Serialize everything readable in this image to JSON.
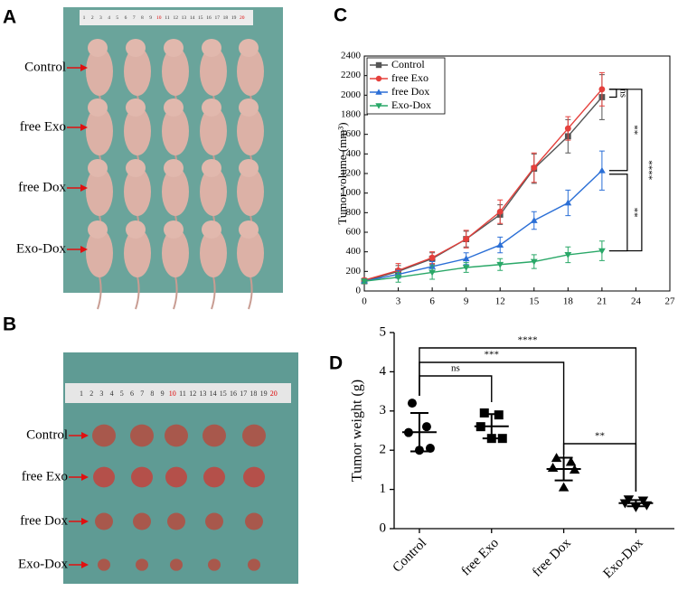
{
  "panels": [
    {
      "letter": "A",
      "ruler": [
        1,
        2,
        3,
        4,
        5,
        6,
        7,
        8,
        9,
        10,
        11,
        12,
        13,
        14,
        15,
        16,
        17,
        18,
        19,
        20
      ],
      "labels": [
        "Control",
        "free Exo",
        "free Dox",
        "Exo-Dox"
      ]
    },
    {
      "letter": "B",
      "ruler": [
        1,
        2,
        3,
        4,
        5,
        6,
        7,
        8,
        9,
        10,
        11,
        12,
        13,
        14,
        15,
        16,
        17,
        18,
        19,
        20
      ],
      "labels": [
        "Control",
        "free Exo",
        "free Dox",
        "Exo-Dox"
      ]
    }
  ],
  "chart_data": [
    {
      "type": "line",
      "letter": "C",
      "y_label": "Tumor volume (mm³)",
      "x": [
        0,
        3,
        6,
        9,
        12,
        15,
        18,
        21
      ],
      "xlim": [
        0,
        27
      ],
      "xticks": [
        0,
        3,
        6,
        9,
        12,
        15,
        18,
        21,
        24,
        27
      ],
      "ylim": [
        0,
        2400
      ],
      "yticks": [
        0,
        200,
        400,
        600,
        800,
        1000,
        1200,
        1400,
        1600,
        1800,
        2000,
        2200,
        2400
      ],
      "legend": "top-left",
      "series": [
        {
          "name": "Control",
          "color": "#555555",
          "marker": "square",
          "values": [
            100,
            200,
            330,
            530,
            780,
            1250,
            1580,
            1980
          ],
          "errors": [
            20,
            60,
            60,
            80,
            100,
            150,
            170,
            230
          ]
        },
        {
          "name": "free Exo",
          "color": "#e5403c",
          "marker": "circle",
          "values": [
            110,
            210,
            340,
            530,
            810,
            1260,
            1660,
            2060
          ],
          "errors": [
            20,
            70,
            60,
            90,
            120,
            150,
            120,
            170
          ]
        },
        {
          "name": "free Dox",
          "color": "#2b6fd6",
          "marker": "triangle",
          "values": [
            100,
            170,
            250,
            330,
            470,
            720,
            900,
            1230
          ],
          "errors": [
            20,
            40,
            50,
            60,
            80,
            90,
            130,
            200
          ]
        },
        {
          "name": "Exo-Dox",
          "color": "#2aa868",
          "marker": "triangle-down",
          "values": [
            100,
            140,
            190,
            240,
            270,
            300,
            370,
            410
          ],
          "errors": [
            20,
            50,
            70,
            50,
            60,
            70,
            80,
            100
          ]
        }
      ],
      "annotations": [
        "ns",
        "**",
        "****",
        "**"
      ]
    },
    {
      "type": "dot",
      "letter": "D",
      "y_label": "Tumor weight (g)",
      "categories": [
        "Control",
        "free Exo",
        "free Dox",
        "Exo-Dox"
      ],
      "markers": [
        "circle",
        "square",
        "triangle",
        "triangle-down"
      ],
      "color": "#000000",
      "points": [
        [
          3.2,
          2.6,
          2.45,
          2.05,
          2.0
        ],
        [
          2.95,
          2.9,
          2.6,
          2.3,
          2.3
        ],
        [
          1.8,
          1.7,
          1.55,
          1.5,
          1.05
        ],
        [
          0.75,
          0.72,
          0.65,
          0.6,
          0.55
        ]
      ],
      "means": [
        2.46,
        2.61,
        1.52,
        0.65
      ],
      "sds": [
        0.49,
        0.31,
        0.29,
        0.08
      ],
      "ylim": [
        0,
        5
      ],
      "yticks": [
        0,
        1,
        2,
        3,
        4,
        5
      ],
      "annotations": [
        "ns",
        "***",
        "****",
        "**"
      ]
    }
  ]
}
